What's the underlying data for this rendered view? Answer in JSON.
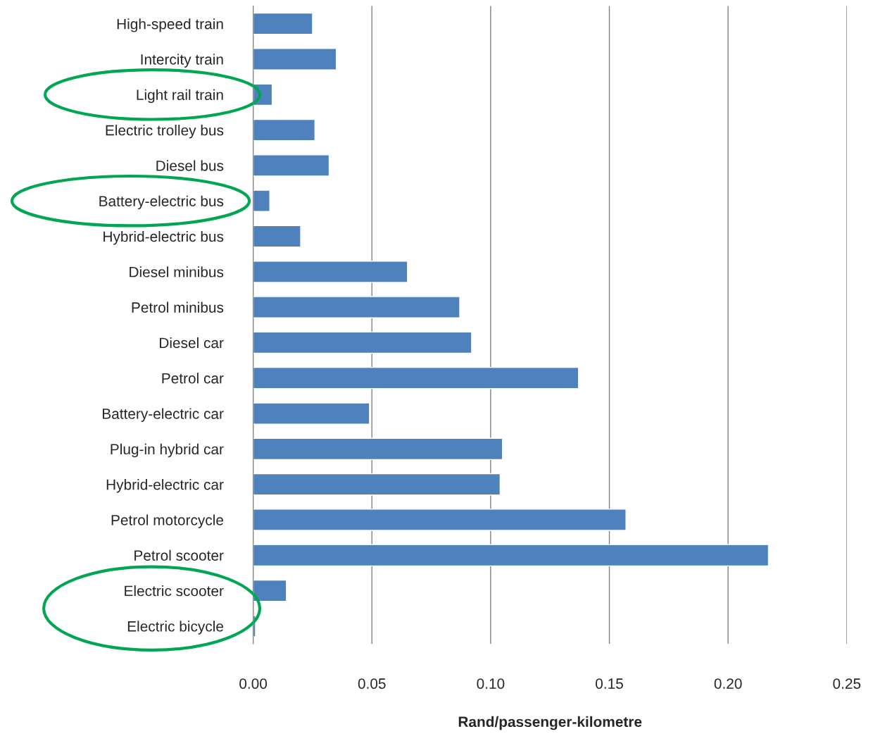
{
  "chart_data": {
    "type": "bar",
    "orientation": "horizontal",
    "xlabel": "Rand/passenger-kilometre",
    "categories": [
      "High-speed train",
      "Intercity train",
      "Light rail train",
      "Electric trolley bus",
      "Diesel bus",
      "Battery-electric bus",
      "Hybrid-electric bus",
      "Diesel minibus",
      "Petrol minibus",
      "Diesel car",
      "Petrol car",
      "Battery-electric car",
      "Plug-in hybrid car",
      "Hybrid-electric car",
      "Petrol motorcycle",
      "Petrol scooter",
      "Electric scooter",
      "Electric bicycle"
    ],
    "values": [
      0.025,
      0.035,
      0.008,
      0.026,
      0.032,
      0.007,
      0.02,
      0.065,
      0.087,
      0.092,
      0.137,
      0.049,
      0.105,
      0.104,
      0.157,
      0.217,
      0.014,
      0.001
    ],
    "color": "#4f81bd",
    "xlim": [
      0,
      0.25
    ],
    "xticks": [
      {
        "value": 0,
        "label": "0.00"
      },
      {
        "value": 0.05,
        "label": "0.05"
      },
      {
        "value": 0.1,
        "label": "0.10"
      },
      {
        "value": 0.15,
        "label": "0.15"
      },
      {
        "value": 0.2,
        "label": "0.20"
      },
      {
        "value": 0.25,
        "label": "0.25"
      }
    ],
    "grid": "x"
  }
}
